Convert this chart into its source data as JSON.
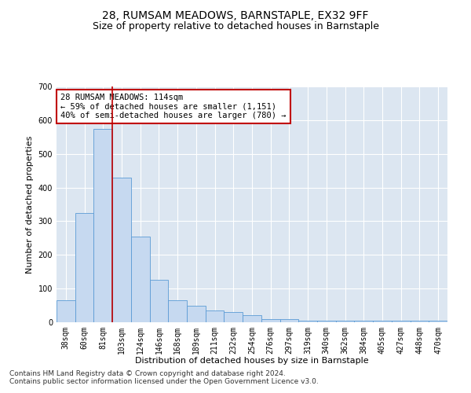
{
  "title": "28, RUMSAM MEADOWS, BARNSTAPLE, EX32 9FF",
  "subtitle": "Size of property relative to detached houses in Barnstaple",
  "xlabel": "Distribution of detached houses by size in Barnstaple",
  "ylabel": "Number of detached properties",
  "categories": [
    "38sqm",
    "60sqm",
    "81sqm",
    "103sqm",
    "124sqm",
    "146sqm",
    "168sqm",
    "189sqm",
    "211sqm",
    "232sqm",
    "254sqm",
    "276sqm",
    "297sqm",
    "319sqm",
    "340sqm",
    "362sqm",
    "384sqm",
    "405sqm",
    "427sqm",
    "448sqm",
    "470sqm"
  ],
  "values": [
    65,
    325,
    575,
    430,
    255,
    125,
    65,
    50,
    35,
    30,
    20,
    10,
    10,
    5,
    5,
    5,
    5,
    5,
    5,
    5,
    5
  ],
  "bar_color": "#c6d9f0",
  "bar_edge_color": "#5b9bd5",
  "vline_x_idx": 2.5,
  "vline_color": "#c00000",
  "annotation_text": "28 RUMSAM MEADOWS: 114sqm\n← 59% of detached houses are smaller (1,151)\n40% of semi-detached houses are larger (780) →",
  "annotation_box_color": "#ffffff",
  "annotation_box_edge_color": "#c00000",
  "ylim": [
    0,
    700
  ],
  "yticks": [
    0,
    100,
    200,
    300,
    400,
    500,
    600,
    700
  ],
  "footnote": "Contains HM Land Registry data © Crown copyright and database right 2024.\nContains public sector information licensed under the Open Government Licence v3.0.",
  "plot_bg_color": "#dce6f1",
  "fig_bg_color": "#ffffff",
  "grid_color": "#ffffff",
  "title_fontsize": 10,
  "subtitle_fontsize": 9,
  "label_fontsize": 8,
  "tick_fontsize": 7,
  "annotation_fontsize": 7.5,
  "footnote_fontsize": 6.5
}
